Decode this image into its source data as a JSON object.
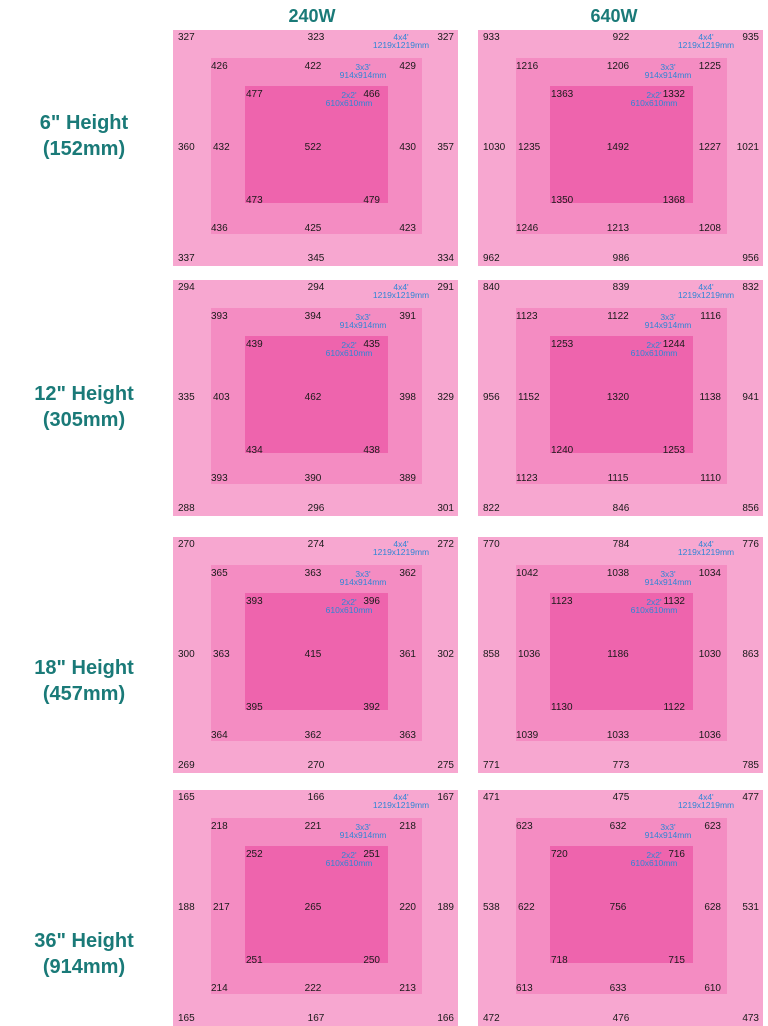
{
  "columns": [
    "240W",
    "640W"
  ],
  "size_labels": {
    "outer": [
      "4x4'",
      "1219x1219mm"
    ],
    "middle": [
      "3x3'",
      "914x914mm"
    ],
    "inner": [
      "2x2'",
      "610x610mm"
    ]
  },
  "rows": [
    {
      "height_label": "6\" Height",
      "height_mm": "(152mm)",
      "panels": [
        {
          "outer": {
            "tl": "327",
            "tc": "323",
            "tr": "327",
            "ml": "360",
            "mr": "357",
            "bl": "337",
            "bc": "345",
            "br": "334"
          },
          "middle": {
            "tl": "426",
            "tc": "422",
            "tr": "429",
            "ml": "432",
            "mr": "430",
            "bl": "436",
            "bc": "425",
            "br": "423"
          },
          "inner": {
            "tl": "477",
            "tr": "466",
            "c": "522",
            "bl": "473",
            "br": "479"
          }
        },
        {
          "outer": {
            "tl": "933",
            "tc": "922",
            "tr": "935",
            "ml": "1030",
            "mr": "1021",
            "bl": "962",
            "bc": "986",
            "br": "956"
          },
          "middle": {
            "tl": "1216",
            "tc": "1206",
            "tr": "1225",
            "ml": "1235",
            "mr": "1227",
            "bl": "1246",
            "bc": "1213",
            "br": "1208"
          },
          "inner": {
            "tl": "1363",
            "tr": "1332",
            "c": "1492",
            "bl": "1350",
            "br": "1368"
          }
        }
      ]
    },
    {
      "height_label": "12\" Height",
      "height_mm": "(305mm)",
      "panels": [
        {
          "outer": {
            "tl": "294",
            "tc": "294",
            "tr": "291",
            "ml": "335",
            "mr": "329",
            "bl": "288",
            "bc": "296",
            "br": "301"
          },
          "middle": {
            "tl": "393",
            "tc": "394",
            "tr": "391",
            "ml": "403",
            "mr": "398",
            "bl": "393",
            "bc": "390",
            "br": "389"
          },
          "inner": {
            "tl": "439",
            "tr": "435",
            "c": "462",
            "bl": "434",
            "br": "438"
          }
        },
        {
          "outer": {
            "tl": "840",
            "tc": "839",
            "tr": "832",
            "ml": "956",
            "mr": "941",
            "bl": "822",
            "bc": "846",
            "br": "856"
          },
          "middle": {
            "tl": "1123",
            "tc": "1122",
            "tr": "1116",
            "ml": "1152",
            "mr": "1138",
            "bl": "1123",
            "bc": "1115",
            "br": "1110"
          },
          "inner": {
            "tl": "1253",
            "tr": "1244",
            "c": "1320",
            "bl": "1240",
            "br": "1253"
          }
        }
      ]
    },
    {
      "height_label": "18\" Height",
      "height_mm": "(457mm)",
      "panels": [
        {
          "outer": {
            "tl": "270",
            "tc": "274",
            "tr": "272",
            "ml": "300",
            "mr": "302",
            "bl": "269",
            "bc": "270",
            "br": "275"
          },
          "middle": {
            "tl": "365",
            "tc": "363",
            "tr": "362",
            "ml": "363",
            "mr": "361",
            "bl": "364",
            "bc": "362",
            "br": "363"
          },
          "inner": {
            "tl": "393",
            "tr": "396",
            "c": "415",
            "bl": "395",
            "br": "392"
          }
        },
        {
          "outer": {
            "tl": "770",
            "tc": "784",
            "tr": "776",
            "ml": "858",
            "mr": "863",
            "bl": "771",
            "bc": "773",
            "br": "785"
          },
          "middle": {
            "tl": "1042",
            "tc": "1038",
            "tr": "1034",
            "ml": "1036",
            "mr": "1030",
            "bl": "1039",
            "bc": "1033",
            "br": "1036"
          },
          "inner": {
            "tl": "1123",
            "tr": "1132",
            "c": "1186",
            "bl": "1130",
            "br": "1122"
          }
        }
      ]
    },
    {
      "height_label": "36\" Height",
      "height_mm": "(914mm)",
      "panels": [
        {
          "outer": {
            "tl": "165",
            "tc": "166",
            "tr": "167",
            "ml": "188",
            "mr": "189",
            "bl": "165",
            "bc": "167",
            "br": "166"
          },
          "middle": {
            "tl": "218",
            "tc": "221",
            "tr": "218",
            "ml": "217",
            "mr": "220",
            "bl": "214",
            "bc": "222",
            "br": "213"
          },
          "inner": {
            "tl": "252",
            "tr": "251",
            "c": "265",
            "bl": "251",
            "br": "250"
          }
        },
        {
          "outer": {
            "tl": "471",
            "tc": "475",
            "tr": "477",
            "ml": "538",
            "mr": "531",
            "bl": "472",
            "bc": "476",
            "br": "473"
          },
          "middle": {
            "tl": "623",
            "tc": "632",
            "tr": "623",
            "ml": "622",
            "mr": "628",
            "bl": "613",
            "bc": "633",
            "br": "610"
          },
          "inner": {
            "tl": "720",
            "tr": "716",
            "c": "756",
            "bl": "718",
            "br": "715"
          }
        }
      ]
    }
  ]
}
